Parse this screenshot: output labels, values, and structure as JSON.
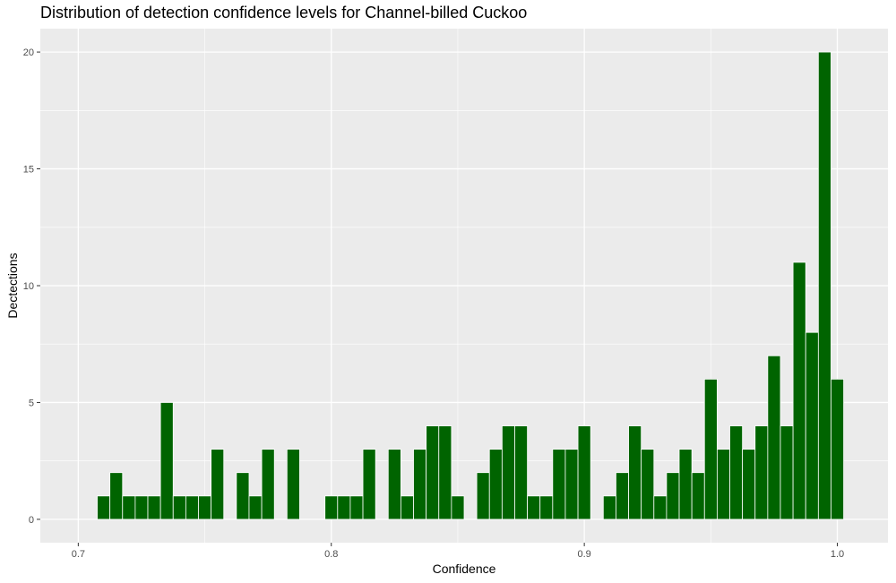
{
  "chart_data": {
    "type": "bar",
    "title": "Distribution of detection confidence levels for Channel-billed Cuckoo",
    "xlabel": "Confidence",
    "ylabel": "Dectections",
    "xlim": [
      0.685,
      1.02
    ],
    "ylim": [
      -1,
      21
    ],
    "x_ticks": [
      0.7,
      0.8,
      0.9,
      1.0
    ],
    "x_tick_labels": [
      "0.7",
      "0.8",
      "0.9",
      "1.0"
    ],
    "y_ticks": [
      0,
      5,
      10,
      15,
      20
    ],
    "y_tick_labels": [
      "0",
      "5",
      "10",
      "15",
      "20"
    ],
    "bin_width": 0.005,
    "bin_centers": [
      0.71,
      0.715,
      0.72,
      0.725,
      0.73,
      0.735,
      0.74,
      0.745,
      0.75,
      0.755,
      0.76,
      0.765,
      0.77,
      0.775,
      0.78,
      0.785,
      0.79,
      0.795,
      0.8,
      0.805,
      0.81,
      0.815,
      0.82,
      0.825,
      0.83,
      0.835,
      0.84,
      0.845,
      0.85,
      0.855,
      0.86,
      0.865,
      0.87,
      0.875,
      0.88,
      0.885,
      0.89,
      0.895,
      0.9,
      0.905,
      0.91,
      0.915,
      0.92,
      0.925,
      0.93,
      0.935,
      0.94,
      0.945,
      0.95,
      0.955,
      0.96,
      0.965,
      0.97,
      0.975,
      0.98,
      0.985,
      0.99,
      0.995,
      1.0
    ],
    "values": [
      1,
      2,
      1,
      1,
      1,
      5,
      1,
      1,
      1,
      3,
      0,
      2,
      1,
      3,
      0,
      3,
      0,
      0,
      1,
      1,
      1,
      3,
      0,
      3,
      1,
      3,
      4,
      4,
      1,
      0,
      2,
      3,
      4,
      4,
      1,
      1,
      3,
      3,
      4,
      0,
      1,
      2,
      4,
      3,
      1,
      2,
      3,
      2,
      6,
      3,
      4,
      3,
      4,
      7,
      4,
      11,
      8,
      20,
      6
    ],
    "bar_color": "#006400",
    "bar_outline": "#ffffff",
    "panel_background": "#ebebeb",
    "grid": true,
    "grid_color": "#ffffff",
    "legend": "none"
  }
}
